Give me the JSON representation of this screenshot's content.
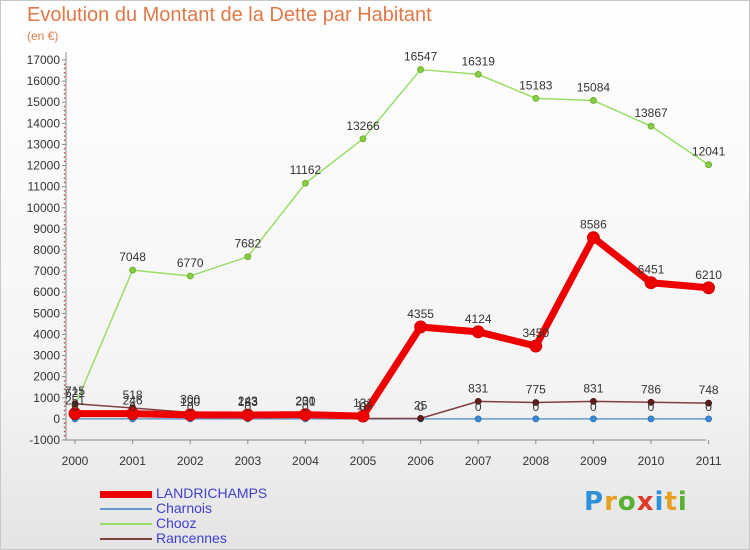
{
  "title": "Evolution du Montant de la Dette par Habitant",
  "subtitle": "(en €)",
  "logo": {
    "text": "Proxiti",
    "letters": [
      "P",
      "r",
      "o",
      "x",
      "i",
      "t",
      "i"
    ],
    "colors": [
      "#2f8fd8",
      "#e8a020",
      "#58b030",
      "#e03a2a",
      "#2f8fd8",
      "#e8a020",
      "#58b030"
    ]
  },
  "chart_data": {
    "type": "line",
    "title": "Evolution du Montant de la Dette par Habitant",
    "subtitle": "(en €)",
    "xlabel": "",
    "ylabel": "",
    "x": [
      "2000",
      "2001",
      "2002",
      "2003",
      "2004",
      "2005",
      "2006",
      "2007",
      "2008",
      "2009",
      "2010",
      "2011"
    ],
    "ylim": [
      -1000,
      17000
    ],
    "yticks": [
      -1000,
      0,
      1000,
      2000,
      3000,
      4000,
      5000,
      6000,
      7000,
      8000,
      9000,
      10000,
      11000,
      12000,
      13000,
      14000,
      15000,
      16000,
      17000
    ],
    "grid": false,
    "legend_position": "bottom-left",
    "series": [
      {
        "name": "LANDRICHAMPS",
        "color": "#ee0000",
        "values": [
          251,
          246,
          190,
          183,
          201,
          131,
          4355,
          4124,
          3450,
          8586,
          6451,
          6210
        ],
        "labels": [
          "251",
          "246",
          "190",
          "183",
          "201",
          "131",
          "4355",
          "4124",
          "3450",
          "8586",
          "6451",
          "6210"
        ]
      },
      {
        "name": "Charnois",
        "color": "#6699cc",
        "values": [
          0,
          0,
          0,
          0,
          0,
          0,
          0,
          0,
          0,
          0,
          0,
          0
        ],
        "labels": [
          "0",
          "0",
          "0",
          "0",
          "0",
          "0",
          "0",
          "0",
          "0",
          "0",
          "0",
          "0"
        ]
      },
      {
        "name": "Chooz",
        "color": "#99dd66",
        "values": [
          621,
          7048,
          6770,
          7682,
          11162,
          13266,
          16547,
          16319,
          15183,
          15084,
          13867,
          12041
        ],
        "labels": [
          "621",
          "7048",
          "6770",
          "7682",
          "11162",
          "13266",
          "16547",
          "16319",
          "15183",
          "15084",
          "13867",
          "12041"
        ]
      },
      {
        "name": "Rancennes",
        "color": "#804040",
        "values": [
          715,
          518,
          300,
          243,
          230,
          18,
          25,
          831,
          775,
          831,
          786,
          748
        ],
        "labels": [
          "715",
          "518",
          "300",
          "243",
          "230",
          "18",
          "25",
          "831",
          "775",
          "831",
          "786",
          "748"
        ]
      }
    ]
  }
}
